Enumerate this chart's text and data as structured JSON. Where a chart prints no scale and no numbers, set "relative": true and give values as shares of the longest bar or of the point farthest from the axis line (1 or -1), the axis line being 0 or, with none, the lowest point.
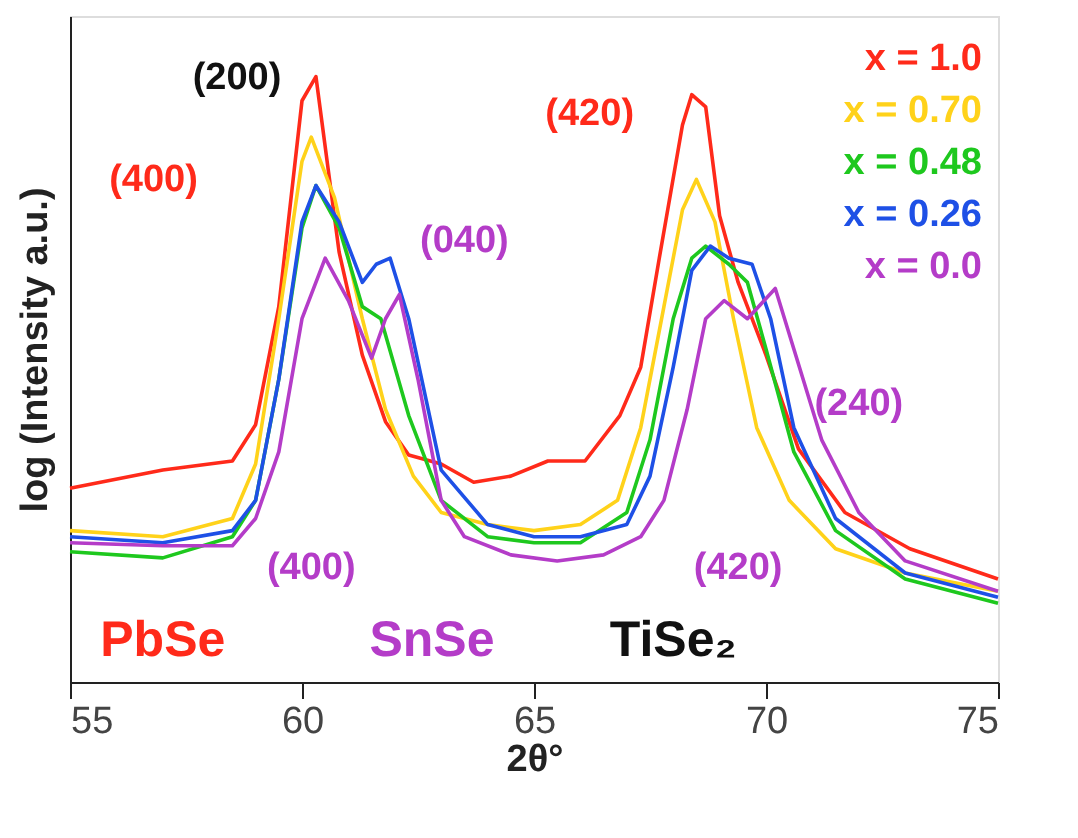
{
  "chart_data": {
    "type": "line",
    "relative": true,
    "xlabel": "2θ°",
    "ylabel": "log (Intensity a.u.)",
    "xlim": [
      55,
      75
    ],
    "xticks": [
      55,
      60,
      65,
      70,
      75
    ],
    "grid": false,
    "legend": "top right",
    "marker": "none",
    "line_style": "solid",
    "annotations": [
      "(200)",
      "(400)",
      "(040)",
      "(400)",
      "(420)",
      "(240)",
      "(420)",
      "PbSe",
      "SnSe",
      "TiSe₂"
    ],
    "series": [
      {
        "name": "x = 1.0",
        "color": "#ff2a1a",
        "x": [
          55,
          57,
          58.5,
          59,
          59.5,
          60,
          60.3,
          60.8,
          61.3,
          61.8,
          62.3,
          63,
          63.7,
          64.5,
          65.3,
          66.1,
          66.85,
          67.3,
          67.7,
          68.2,
          68.4,
          68.7,
          69,
          69.4,
          70,
          70.7,
          71.7,
          73.1,
          75
        ],
        "values": [
          0.32,
          0.35,
          0.365,
          0.425,
          0.62,
          0.96,
          1.0,
          0.71,
          0.54,
          0.43,
          0.375,
          0.36,
          0.33,
          0.34,
          0.365,
          0.365,
          0.44,
          0.52,
          0.7,
          0.92,
          0.97,
          0.95,
          0.77,
          0.66,
          0.54,
          0.385,
          0.28,
          0.22,
          0.17
        ]
      },
      {
        "name": "x = 0.70",
        "color": "#ffd21a",
        "x": [
          55,
          57,
          58.5,
          59,
          59.5,
          60,
          60.2,
          60.7,
          61.3,
          61.8,
          62.4,
          63,
          64,
          65,
          66,
          66.8,
          67.3,
          67.8,
          68.2,
          68.5,
          68.9,
          69.3,
          69.8,
          70.5,
          71.5,
          73,
          75
        ],
        "values": [
          0.25,
          0.24,
          0.27,
          0.36,
          0.6,
          0.86,
          0.9,
          0.8,
          0.6,
          0.45,
          0.34,
          0.28,
          0.26,
          0.25,
          0.26,
          0.3,
          0.42,
          0.62,
          0.78,
          0.83,
          0.76,
          0.6,
          0.42,
          0.3,
          0.22,
          0.18,
          0.15
        ]
      },
      {
        "name": "x = 0.48",
        "color": "#1ec81e",
        "x": [
          55,
          57,
          58.5,
          59,
          59.5,
          60,
          60.3,
          60.8,
          61.3,
          61.7,
          62.3,
          63,
          64,
          65,
          66,
          67,
          67.5,
          68,
          68.4,
          68.7,
          69.2,
          69.6,
          70,
          70.6,
          71.5,
          73,
          75
        ],
        "values": [
          0.215,
          0.205,
          0.24,
          0.3,
          0.5,
          0.75,
          0.82,
          0.75,
          0.62,
          0.6,
          0.44,
          0.3,
          0.24,
          0.23,
          0.23,
          0.28,
          0.4,
          0.6,
          0.7,
          0.72,
          0.69,
          0.66,
          0.55,
          0.38,
          0.25,
          0.17,
          0.13
        ]
      },
      {
        "name": "x = 0.26",
        "color": "#1e50e6",
        "x": [
          55,
          57,
          58.5,
          59,
          59.5,
          60,
          60.3,
          60.8,
          61.3,
          61.6,
          61.9,
          62.3,
          63,
          64,
          65,
          66,
          67,
          67.5,
          68,
          68.4,
          68.8,
          69.2,
          69.7,
          70.1,
          70.6,
          71.5,
          73,
          75
        ],
        "values": [
          0.24,
          0.23,
          0.25,
          0.3,
          0.5,
          0.76,
          0.82,
          0.76,
          0.66,
          0.69,
          0.7,
          0.6,
          0.35,
          0.26,
          0.24,
          0.24,
          0.26,
          0.34,
          0.52,
          0.68,
          0.72,
          0.7,
          0.69,
          0.6,
          0.42,
          0.27,
          0.18,
          0.14
        ]
      },
      {
        "name": "x = 0.0",
        "color": "#b43cc8",
        "x": [
          55,
          57,
          58.5,
          59,
          59.5,
          60,
          60.5,
          61,
          61.5,
          61.8,
          62.1,
          62.5,
          63,
          63.5,
          64.5,
          65.5,
          66.5,
          67.3,
          67.8,
          68.3,
          68.7,
          69.1,
          69.6,
          70.2,
          70.6,
          71.2,
          72,
          73,
          75
        ],
        "values": [
          0.23,
          0.225,
          0.225,
          0.27,
          0.38,
          0.6,
          0.7,
          0.63,
          0.535,
          0.6,
          0.64,
          0.5,
          0.3,
          0.24,
          0.21,
          0.2,
          0.21,
          0.24,
          0.3,
          0.45,
          0.6,
          0.63,
          0.6,
          0.65,
          0.55,
          0.4,
          0.28,
          0.2,
          0.15
        ]
      }
    ]
  }
}
